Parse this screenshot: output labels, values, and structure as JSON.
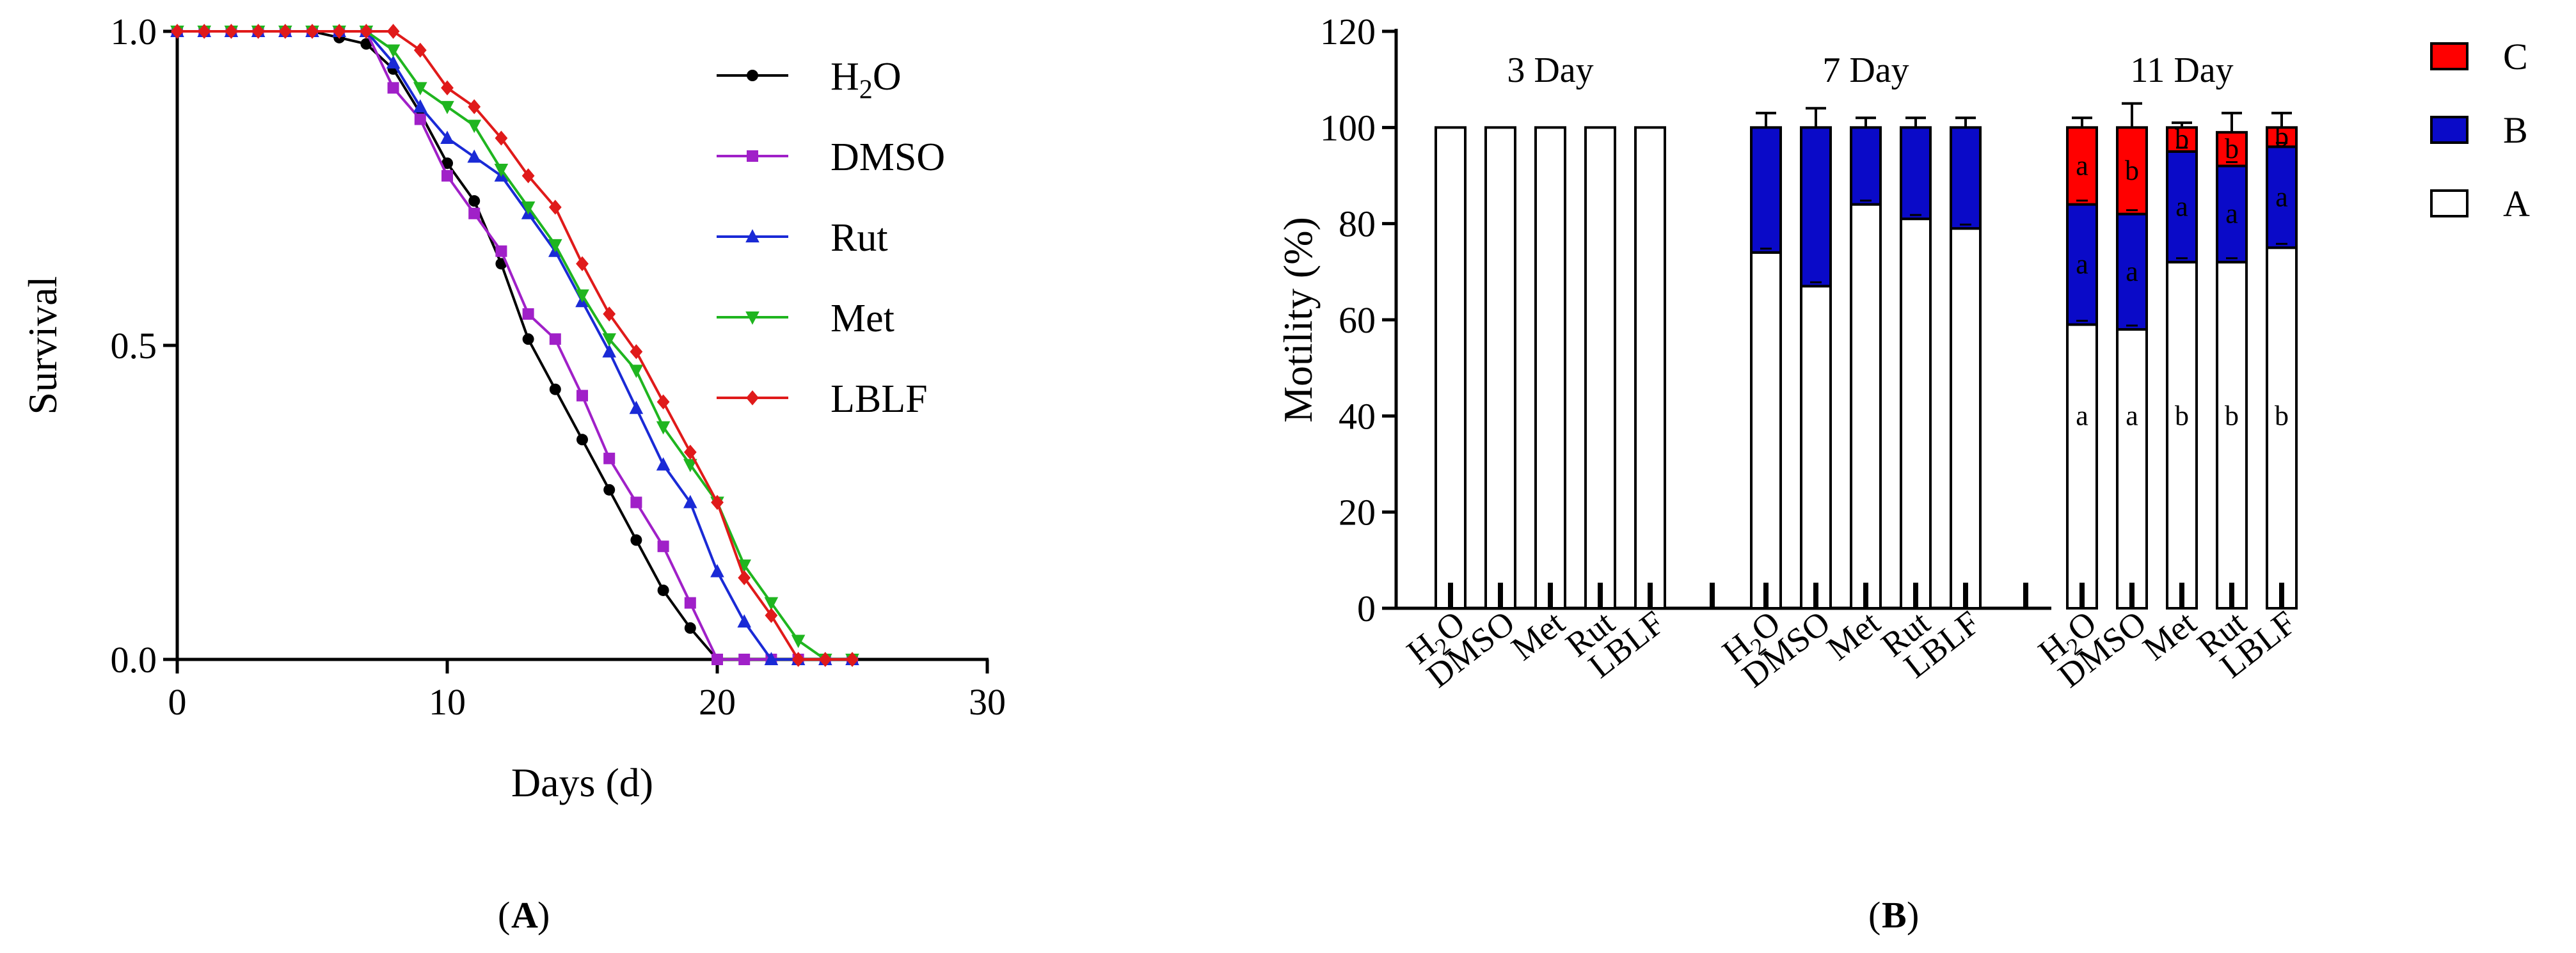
{
  "colors": {
    "H2O": "#000000",
    "DMSO": "#a020c8",
    "Rut": "#1a2ad6",
    "Met": "#1fb51f",
    "LBLF": "#e01a1a",
    "C": "#ff0000",
    "B": "#0a0ac8",
    "A": "#ffffff"
  },
  "panel_labels": {
    "A": "A",
    "B": "B"
  },
  "chart_data": [
    {
      "id": "A",
      "type": "line",
      "title": "",
      "xlabel": "Days (d)",
      "ylabel": "Survival",
      "xlim": [
        0,
        30
      ],
      "ylim": [
        0,
        1
      ],
      "xticks": [
        0,
        10,
        20,
        30
      ],
      "yticks": [
        0.0,
        0.5,
        1.0
      ],
      "xtick_labels": [
        "0",
        "10",
        "20",
        "30"
      ],
      "ytick_labels": [
        "0.0",
        "0.5",
        "1.0"
      ],
      "legend": [
        "H2O",
        "DMSO",
        "Rut",
        "Met",
        "LBLF"
      ],
      "series": [
        {
          "name": "H2O",
          "marker": "circle",
          "x": [
            0,
            1,
            2,
            3,
            4,
            5,
            6,
            7,
            8,
            9,
            10,
            11,
            12,
            13,
            14,
            15,
            16,
            17,
            18,
            19,
            20,
            21,
            22,
            23,
            24,
            25
          ],
          "y": [
            1,
            1,
            1,
            1,
            1,
            1,
            0.99,
            0.98,
            0.94,
            0.87,
            0.79,
            0.73,
            0.63,
            0.51,
            0.43,
            0.35,
            0.27,
            0.19,
            0.11,
            0.05,
            0,
            0,
            0,
            0,
            0,
            0
          ]
        },
        {
          "name": "DMSO",
          "marker": "square",
          "x": [
            0,
            1,
            2,
            3,
            4,
            5,
            6,
            7,
            8,
            9,
            10,
            11,
            12,
            13,
            14,
            15,
            16,
            17,
            18,
            19,
            20,
            21,
            22,
            23,
            24,
            25
          ],
          "y": [
            1,
            1,
            1,
            1,
            1,
            1,
            1,
            1,
            0.91,
            0.86,
            0.77,
            0.71,
            0.65,
            0.55,
            0.51,
            0.42,
            0.32,
            0.25,
            0.18,
            0.09,
            0,
            0,
            0,
            0,
            0,
            0
          ]
        },
        {
          "name": "Rut",
          "marker": "triangle-up",
          "x": [
            0,
            1,
            2,
            3,
            4,
            5,
            6,
            7,
            8,
            9,
            10,
            11,
            12,
            13,
            14,
            15,
            16,
            17,
            18,
            19,
            20,
            21,
            22,
            23,
            24,
            25
          ],
          "y": [
            1,
            1,
            1,
            1,
            1,
            1,
            1,
            1,
            0.95,
            0.88,
            0.83,
            0.8,
            0.77,
            0.71,
            0.65,
            0.57,
            0.49,
            0.4,
            0.31,
            0.25,
            0.14,
            0.06,
            0,
            0,
            0,
            0
          ]
        },
        {
          "name": "Met",
          "marker": "triangle-down",
          "x": [
            0,
            1,
            2,
            3,
            4,
            5,
            6,
            7,
            8,
            9,
            10,
            11,
            12,
            13,
            14,
            15,
            16,
            17,
            18,
            19,
            20,
            21,
            22,
            23,
            24,
            25
          ],
          "y": [
            1,
            1,
            1,
            1,
            1,
            1,
            1,
            1,
            0.97,
            0.91,
            0.88,
            0.85,
            0.78,
            0.72,
            0.66,
            0.58,
            0.51,
            0.46,
            0.37,
            0.31,
            0.25,
            0.15,
            0.09,
            0.03,
            0,
            0
          ]
        },
        {
          "name": "LBLF",
          "marker": "diamond",
          "x": [
            0,
            1,
            2,
            3,
            4,
            5,
            6,
            7,
            8,
            9,
            10,
            11,
            12,
            13,
            14,
            15,
            16,
            17,
            18,
            19,
            20,
            21,
            22,
            23,
            24,
            25
          ],
          "y": [
            1,
            1,
            1,
            1,
            1,
            1,
            1,
            1,
            1,
            0.97,
            0.91,
            0.88,
            0.83,
            0.77,
            0.72,
            0.63,
            0.55,
            0.49,
            0.41,
            0.33,
            0.25,
            0.13,
            0.07,
            0,
            0,
            0
          ]
        }
      ]
    },
    {
      "id": "B",
      "type": "bar",
      "stacked": true,
      "title": "",
      "xlabel": "",
      "ylabel": "Motility (%)",
      "ylim": [
        0,
        120
      ],
      "yticks": [
        0,
        20,
        40,
        60,
        80,
        100,
        120
      ],
      "ytick_labels": [
        "0",
        "20",
        "40",
        "60",
        "80",
        "100",
        "120"
      ],
      "legend": [
        "C",
        "B",
        "A"
      ],
      "groups": [
        {
          "label": "3 Day",
          "bars": [
            {
              "name": "H₂O",
              "A": 100,
              "B": 0,
              "C": 0,
              "err": 0,
              "letters": {}
            },
            {
              "name": "DMSO",
              "A": 100,
              "B": 0,
              "C": 0,
              "err": 0,
              "letters": {}
            },
            {
              "name": "Met",
              "A": 100,
              "B": 0,
              "C": 0,
              "err": 0,
              "letters": {}
            },
            {
              "name": "Rut",
              "A": 100,
              "B": 0,
              "C": 0,
              "err": 0,
              "letters": {}
            },
            {
              "name": "LBLF",
              "A": 100,
              "B": 0,
              "C": 0,
              "err": 0,
              "letters": {}
            }
          ]
        },
        {
          "label": "7 Day",
          "bars": [
            {
              "name": "H₂O",
              "A": 74,
              "B": 26,
              "C": 0,
              "err": 3,
              "letters": {}
            },
            {
              "name": "DMSO",
              "A": 67,
              "B": 33,
              "C": 0,
              "err": 4,
              "letters": {}
            },
            {
              "name": "Met",
              "A": 84,
              "B": 16,
              "C": 0,
              "err": 2,
              "letters": {}
            },
            {
              "name": "Rut",
              "A": 81,
              "B": 19,
              "C": 0,
              "err": 2,
              "letters": {}
            },
            {
              "name": "LBLF",
              "A": 79,
              "B": 21,
              "C": 0,
              "err": 2,
              "letters": {}
            }
          ]
        },
        {
          "label": "11 Day",
          "bars": [
            {
              "name": "H₂O",
              "A": 59,
              "B": 25,
              "C": 16,
              "err": 2,
              "letters": {
                "A": "a",
                "B": "a",
                "C": "a"
              }
            },
            {
              "name": "DMSO",
              "A": 58,
              "B": 24,
              "C": 18,
              "err": 5,
              "letters": {
                "A": "a",
                "B": "a",
                "C": "b"
              }
            },
            {
              "name": "Met",
              "A": 72,
              "B": 23,
              "C": 5,
              "err": 1,
              "letters": {
                "A": "b",
                "B": "a",
                "C": "b"
              }
            },
            {
              "name": "Rut",
              "A": 72,
              "B": 20,
              "C": 7,
              "err": 4,
              "letters": {
                "A": "b",
                "B": "a",
                "C": "b"
              }
            },
            {
              "name": "LBLF",
              "A": 75,
              "B": 21,
              "C": 4,
              "err": 3,
              "letters": {
                "A": "b",
                "B": "a",
                "C": "b"
              }
            }
          ]
        }
      ]
    }
  ]
}
